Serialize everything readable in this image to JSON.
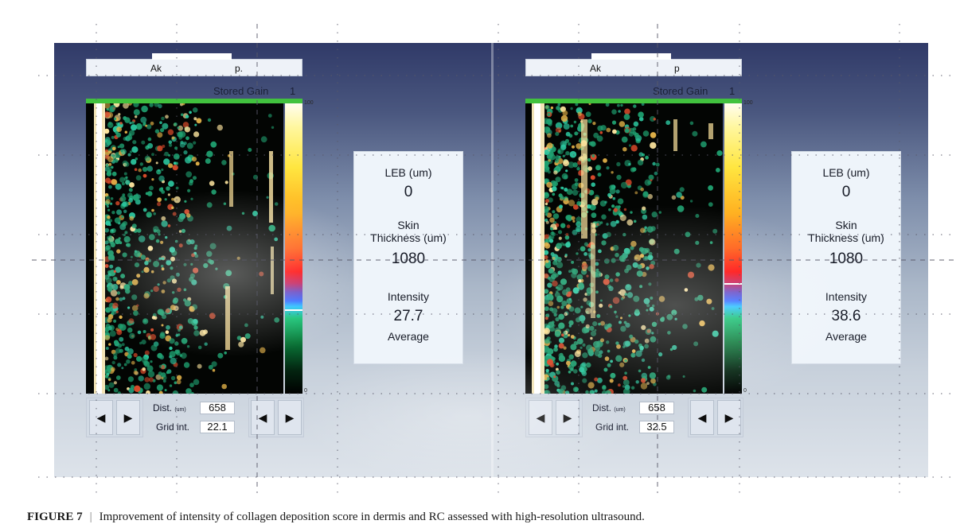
{
  "panels": [
    {
      "patient_label_start": "Ak",
      "patient_label_end": "p.",
      "stored_gain_label": "Stored Gain",
      "stored_gain_value": "1",
      "scale_max": "100",
      "scale_min": "0",
      "scale_marker_level": 0.29,
      "leb_label": "LEB (um)",
      "leb_value": "0",
      "skin_label": "Skin",
      "thickness_label": "Thickness (um)",
      "thickness_value": "1080",
      "intensity_label": "Intensity",
      "intensity_value": "27.7",
      "average_label": "Average",
      "dist_label": "Dist.",
      "dist_unit": "(um)",
      "dist_value": "658",
      "grid_label": "Grid int.",
      "grid_value": "22.1"
    },
    {
      "patient_label_start": "Ak",
      "patient_label_end": "p",
      "stored_gain_label": "Stored Gain",
      "stored_gain_value": "1",
      "scale_max": "100",
      "scale_min": "0",
      "scale_marker_level": 0.38,
      "leb_label": "LEB (um)",
      "leb_value": "0",
      "skin_label": "Skin",
      "thickness_label": "Thickness (um)",
      "thickness_value": "1080",
      "intensity_label": "Intensity",
      "intensity_value": "38.6",
      "average_label": "Average",
      "dist_label": "Dist.",
      "dist_unit": "(um)",
      "dist_value": "658",
      "grid_label": "Grid int.",
      "grid_value": "32.5"
    }
  ],
  "controls": {
    "left_arrow": "◀",
    "right_arrow": "▶"
  },
  "caption": {
    "label": "FIGURE 7",
    "separator": "|",
    "text": "Improvement of intensity of collagen deposition score in dermis and RC assessed with high-resolution ultrasound."
  }
}
